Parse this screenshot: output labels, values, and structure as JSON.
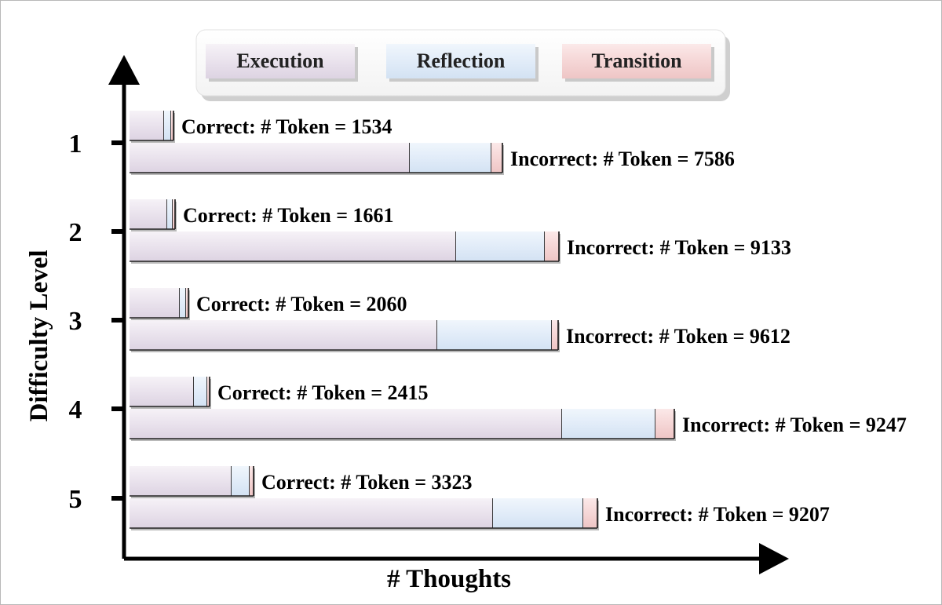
{
  "chart_data": {
    "type": "bar",
    "orientation": "horizontal",
    "stacked": true,
    "xlabel": "# Thoughts",
    "ylabel": "Difficulty Level",
    "categories": [
      "1",
      "2",
      "3",
      "4",
      "5"
    ],
    "legend": {
      "placement": "top",
      "items": [
        {
          "name": "Execution",
          "color": "#ece6ef"
        },
        {
          "name": "Reflection",
          "color": "#e5effa"
        },
        {
          "name": "Transition",
          "color": "#f8dcdc"
        }
      ]
    },
    "groups": [
      {
        "name": "Correct",
        "values": [
          {
            "execution": 44,
            "reflection": 9,
            "transition": 3
          },
          {
            "execution": 48,
            "reflection": 7,
            "transition": 3
          },
          {
            "execution": 64,
            "reflection": 8,
            "transition": 3
          },
          {
            "execution": 82,
            "reflection": 17,
            "transition": 3
          },
          {
            "execution": 130,
            "reflection": 23,
            "transition": 5
          }
        ],
        "labels": [
          "Correct: # Token = 1534",
          "Correct: # Token = 1661",
          "Correct: # Token = 2060",
          "Correct: # Token = 2415",
          "Correct: # Token = 3323"
        ]
      },
      {
        "name": "Incorrect",
        "values": [
          {
            "execution": 357,
            "reflection": 104,
            "transition": 14
          },
          {
            "execution": 416,
            "reflection": 113,
            "transition": 18
          },
          {
            "execution": 392,
            "reflection": 146,
            "transition": 8
          },
          {
            "execution": 551,
            "reflection": 119,
            "transition": 24
          },
          {
            "execution": 463,
            "reflection": 115,
            "transition": 18
          }
        ],
        "labels": [
          "Incorrect: # Token = 7586",
          "Incorrect: # Token = 9133",
          "Incorrect: # Token = 9612",
          "Incorrect: # Token = 9247",
          "Incorrect: # Token = 9207"
        ]
      }
    ]
  }
}
